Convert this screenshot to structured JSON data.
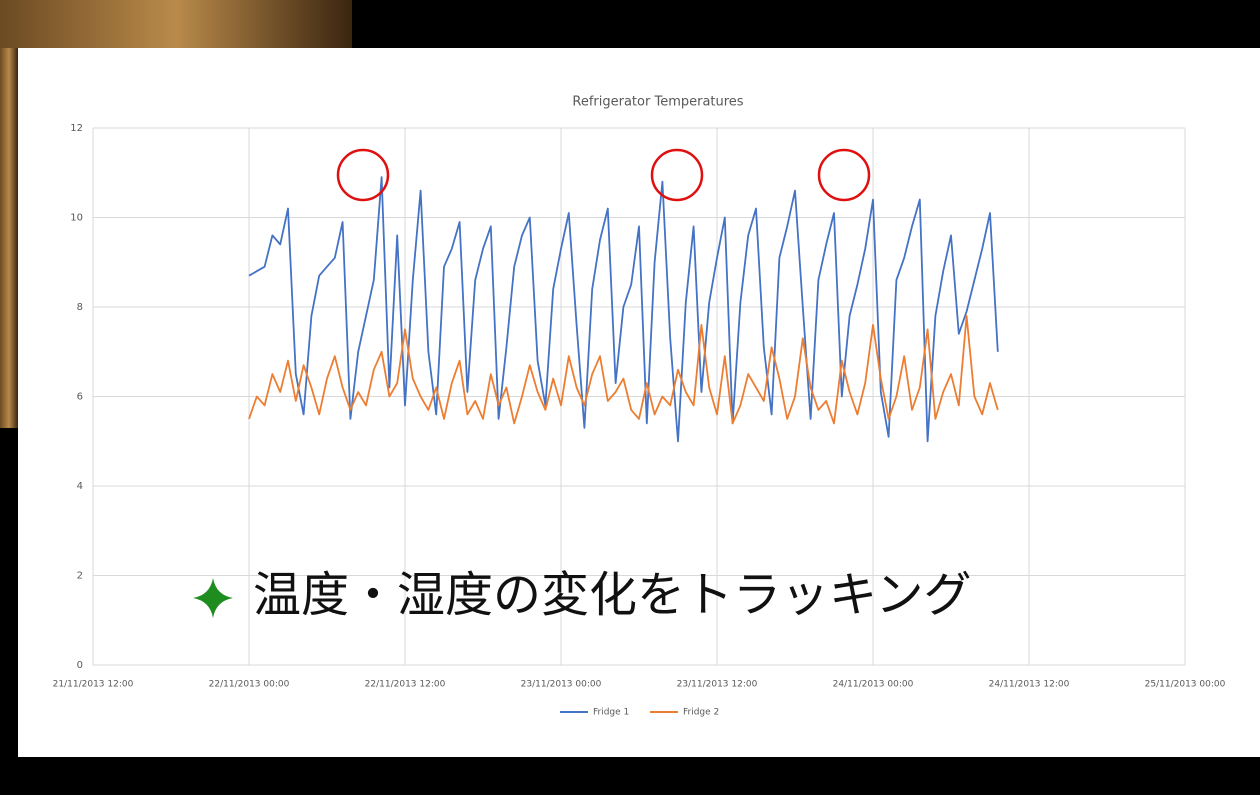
{
  "caption": "温度・湿度の変化をトラッキング",
  "chart_data": {
    "type": "line",
    "title": "Refrigerator Temperatures",
    "grid": true,
    "legend": "bottom",
    "xlim": [
      0,
      7
    ],
    "xticks": [
      {
        "value": 0,
        "label": "21/11/2013 12:00"
      },
      {
        "value": 1,
        "label": "22/11/2013 00:00"
      },
      {
        "value": 2,
        "label": "22/11/2013 12:00"
      },
      {
        "value": 3,
        "label": "23/11/2013 00:00"
      },
      {
        "value": 4,
        "label": "23/11/2013 12:00"
      },
      {
        "value": 5,
        "label": "24/11/2013 00:00"
      },
      {
        "value": 6,
        "label": "24/11/2013 12:00"
      },
      {
        "value": 7,
        "label": "25/11/2013 00:00"
      }
    ],
    "ylim": [
      0,
      12
    ],
    "yticks": [
      0,
      2,
      4,
      6,
      8,
      10,
      12
    ],
    "x": [
      1,
      1.05,
      1.1,
      1.15,
      1.2,
      1.25,
      1.3,
      1.35,
      1.4,
      1.45,
      1.5,
      1.55,
      1.6,
      1.65,
      1.7,
      1.75,
      1.8,
      1.85,
      1.9,
      1.95,
      2,
      2.05,
      2.1,
      2.15,
      2.2,
      2.25,
      2.3,
      2.35,
      2.4,
      2.45,
      2.5,
      2.55,
      2.6,
      2.65,
      2.7,
      2.75,
      2.8,
      2.85,
      2.9,
      2.95,
      3,
      3.05,
      3.1,
      3.15,
      3.2,
      3.25,
      3.3,
      3.35,
      3.4,
      3.45,
      3.5,
      3.55,
      3.6,
      3.65,
      3.7,
      3.75,
      3.8,
      3.85,
      3.9,
      3.95,
      4,
      4.05,
      4.1,
      4.15,
      4.2,
      4.25,
      4.3,
      4.35,
      4.4,
      4.45,
      4.5,
      4.55,
      4.6,
      4.65,
      4.7,
      4.75,
      4.8,
      4.85,
      4.9,
      4.95,
      5,
      5.05,
      5.1,
      5.15,
      5.2,
      5.25,
      5.3,
      5.35,
      5.4,
      5.45,
      5.5,
      5.55,
      5.6,
      5.65,
      5.7,
      5.75,
      5.8
    ],
    "series": [
      {
        "name": "Fridge 1",
        "color": "#4472c4",
        "values": [
          8.7,
          8.8,
          8.9,
          9.6,
          9.4,
          10.2,
          6.5,
          5.6,
          7.8,
          8.7,
          8.9,
          9.1,
          9.9,
          5.5,
          7.0,
          7.8,
          8.6,
          10.9,
          6.2,
          9.6,
          5.8,
          8.6,
          10.6,
          7.0,
          5.6,
          8.9,
          9.3,
          9.9,
          6.1,
          8.6,
          9.3,
          9.8,
          5.5,
          7.1,
          8.9,
          9.6,
          10.0,
          6.8,
          5.8,
          8.4,
          9.3,
          10.1,
          7.6,
          5.3,
          8.4,
          9.5,
          10.2,
          6.3,
          8.0,
          8.5,
          9.8,
          5.4,
          9.0,
          10.8,
          7.3,
          5.0,
          8.1,
          9.8,
          6.1,
          8.1,
          9.1,
          10.0,
          5.4,
          8.1,
          9.6,
          10.2,
          7.1,
          5.6,
          9.1,
          9.8,
          10.6,
          8.0,
          5.5,
          8.6,
          9.4,
          10.1,
          6.0,
          7.8,
          8.5,
          9.3,
          10.4,
          6.1,
          5.1,
          8.6,
          9.1,
          9.8,
          10.4,
          5.0,
          7.8,
          8.8,
          9.6,
          7.4,
          7.9,
          8.6,
          9.3,
          10.1,
          7.0
        ]
      },
      {
        "name": "Fridge 2",
        "color": "#ed7d31",
        "values": [
          5.5,
          6.0,
          5.8,
          6.5,
          6.1,
          6.8,
          5.9,
          6.7,
          6.2,
          5.6,
          6.4,
          6.9,
          6.2,
          5.7,
          6.1,
          5.8,
          6.6,
          7.0,
          6.0,
          6.3,
          7.5,
          6.4,
          6.0,
          5.7,
          6.2,
          5.5,
          6.3,
          6.8,
          5.6,
          5.9,
          5.5,
          6.5,
          5.8,
          6.2,
          5.4,
          6.0,
          6.7,
          6.1,
          5.7,
          6.4,
          5.8,
          6.9,
          6.2,
          5.8,
          6.5,
          6.9,
          5.9,
          6.1,
          6.4,
          5.7,
          5.5,
          6.3,
          5.6,
          6.0,
          5.8,
          6.6,
          6.1,
          5.8,
          7.6,
          6.2,
          5.6,
          6.9,
          5.4,
          5.8,
          6.5,
          6.2,
          5.9,
          7.1,
          6.4,
          5.5,
          6.0,
          7.3,
          6.2,
          5.7,
          5.9,
          5.4,
          6.8,
          6.1,
          5.6,
          6.3,
          7.6,
          6.4,
          5.5,
          6.0,
          6.9,
          5.7,
          6.2,
          7.5,
          5.5,
          6.1,
          6.5,
          5.8,
          7.8,
          6.0,
          5.6,
          6.3,
          5.7
        ]
      }
    ]
  }
}
